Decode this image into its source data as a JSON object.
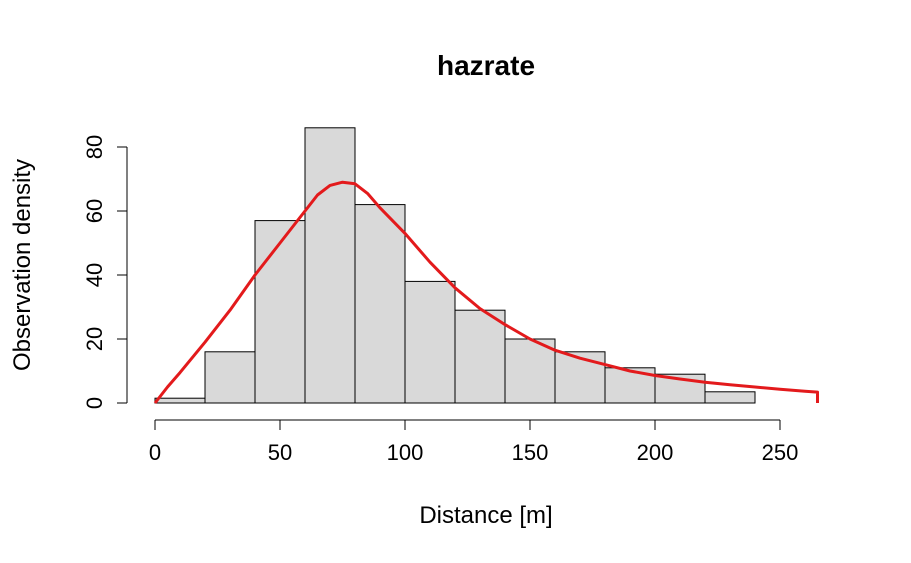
{
  "chart_data": {
    "type": "bar",
    "title": "hazrate",
    "xlabel": "Distance [m]",
    "ylabel": "Observation density",
    "xlim": [
      0,
      265
    ],
    "ylim": [
      0,
      86
    ],
    "x_ticks": [
      "0",
      "50",
      "100",
      "150",
      "200",
      "250"
    ],
    "y_ticks": [
      "0",
      "20",
      "40",
      "60",
      "80"
    ],
    "bins": [
      {
        "x0": 0,
        "x1": 20,
        "value": 1.5
      },
      {
        "x0": 20,
        "x1": 40,
        "value": 16
      },
      {
        "x0": 40,
        "x1": 60,
        "value": 57
      },
      {
        "x0": 60,
        "x1": 80,
        "value": 86
      },
      {
        "x0": 80,
        "x1": 100,
        "value": 62
      },
      {
        "x0": 100,
        "x1": 120,
        "value": 38
      },
      {
        "x0": 120,
        "x1": 140,
        "value": 29
      },
      {
        "x0": 140,
        "x1": 160,
        "value": 20
      },
      {
        "x0": 160,
        "x1": 180,
        "value": 16
      },
      {
        "x0": 180,
        "x1": 200,
        "value": 11
      },
      {
        "x0": 200,
        "x1": 220,
        "value": 9
      },
      {
        "x0": 220,
        "x1": 240,
        "value": 3.5
      }
    ],
    "fitted_curve": {
      "color": "#e31a1c",
      "x": [
        0,
        5,
        10,
        20,
        30,
        40,
        50,
        60,
        65,
        70,
        75,
        80,
        85,
        90,
        100,
        110,
        120,
        130,
        140,
        150,
        160,
        170,
        180,
        190,
        200,
        210,
        220,
        230,
        240,
        250,
        260,
        265
      ],
      "y": [
        0,
        5,
        9.5,
        19,
        29,
        40,
        50,
        60,
        65,
        68,
        69,
        68.5,
        65.5,
        61,
        53,
        44,
        36,
        29.5,
        24.5,
        20,
        16.5,
        14,
        12,
        10,
        8.6,
        7.5,
        6.5,
        5.7,
        5,
        4.3,
        3.7,
        3.4
      ]
    },
    "bar_fill": "#d9d9d9",
    "grid": false
  }
}
